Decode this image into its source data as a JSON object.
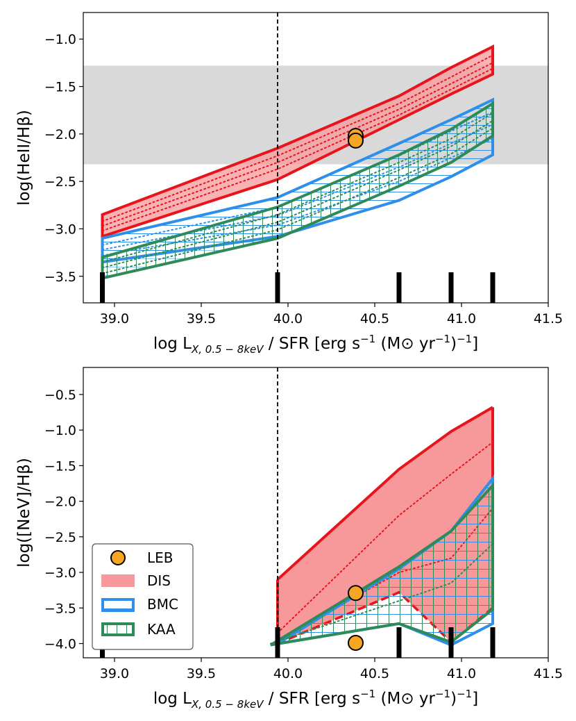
{
  "colors": {
    "DIS": "#e8141c",
    "DIS_fill": "#f7999b",
    "BMC": "#2f8fe8",
    "KAA": "#2e8a57",
    "LEB": "#f7a623",
    "shade": "#d9d9d9"
  },
  "chart_data": [
    {
      "type": "area",
      "xlabel": "log L_{X, 0.5-8keV} / SFR [erg s^-1 (M⊙ yr^-1)^-1]",
      "ylabel": "log(HeII/Hβ)",
      "xlim": [
        38.82,
        41.5
      ],
      "ylim": [
        -3.78,
        -0.72
      ],
      "xticks": [
        "39.0",
        "39.5",
        "40.0",
        "40.5",
        "41.0",
        "41.5"
      ],
      "yticks": [
        "−1.0",
        "−1.5",
        "−2.0",
        "−2.5",
        "−3.0",
        "−3.5"
      ],
      "shaded_band_y": [
        -2.32,
        -1.28
      ],
      "vertical_line_x": 39.94,
      "rug_x": [
        38.93,
        39.94,
        40.64,
        40.94,
        41.18
      ],
      "series": [
        {
          "name": "DIS",
          "x": [
            38.93,
            39.94,
            40.64,
            40.94,
            41.18
          ],
          "upper": [
            -2.85,
            -2.15,
            -1.6,
            -1.3,
            -1.08
          ],
          "lower": [
            -3.08,
            -2.48,
            -1.85,
            -1.58,
            -1.37
          ],
          "inner": [
            [
              -2.92,
              -2.23,
              -1.68,
              -1.4,
              -1.17
            ],
            [
              -2.97,
              -2.3,
              -1.74,
              -1.47,
              -1.25
            ],
            [
              -3.02,
              -2.37,
              -1.8,
              -1.53,
              -1.31
            ]
          ]
        },
        {
          "name": "BMC",
          "x": [
            38.93,
            39.94,
            40.64,
            40.94,
            41.18
          ],
          "upper": [
            -3.1,
            -2.67,
            -2.1,
            -1.85,
            -1.64
          ],
          "lower": [
            -3.35,
            -3.08,
            -2.7,
            -2.45,
            -2.22
          ],
          "inner": [
            [
              -3.17,
              -2.77,
              -2.23,
              -1.97,
              -1.77
            ],
            [
              -3.22,
              -2.86,
              -2.35,
              -2.1,
              -1.9
            ],
            [
              -3.28,
              -2.96,
              -2.5,
              -2.25,
              -2.05
            ]
          ]
        },
        {
          "name": "KAA",
          "x": [
            38.93,
            39.94,
            40.64,
            40.94,
            41.18
          ],
          "upper": [
            -3.3,
            -2.77,
            -2.22,
            -1.95,
            -1.68
          ],
          "lower": [
            -3.52,
            -3.1,
            -2.55,
            -2.3,
            -2.02
          ],
          "inner": [
            [
              -3.35,
              -2.85,
              -2.3,
              -2.05,
              -1.78
            ],
            [
              -3.41,
              -2.93,
              -2.38,
              -2.13,
              -1.86
            ],
            [
              -3.47,
              -3.01,
              -2.46,
              -2.21,
              -1.94
            ]
          ]
        }
      ],
      "points": [
        {
          "name": "LEB",
          "x": 40.39,
          "y": -2.02
        },
        {
          "name": "LEB",
          "x": 40.39,
          "y": -2.07
        }
      ]
    },
    {
      "type": "area",
      "xlabel": "log L_{X, 0.5-8keV} / SFR [erg s^-1 (M⊙ yr^-1)^-1]",
      "ylabel": "log([NeV]/Hβ)",
      "xlim": [
        38.82,
        41.5
      ],
      "ylim": [
        -4.2,
        -0.12
      ],
      "xticks": [
        "39.0",
        "39.5",
        "40.0",
        "40.5",
        "41.0",
        "41.5"
      ],
      "yticks": [
        "−0.5",
        "−1.0",
        "−1.5",
        "−2.0",
        "−2.5",
        "−3.0",
        "−3.5",
        "−4.0"
      ],
      "vertical_line_x": 39.94,
      "rug_x": [
        38.93,
        39.94,
        40.64,
        40.94,
        41.18
      ],
      "series": [
        {
          "name": "DIS",
          "x": [
            39.94,
            40.64,
            40.94,
            41.18
          ],
          "upper": [
            -3.1,
            -1.55,
            -1.02,
            -0.68
          ],
          "lower": [
            -4.0,
            -3.28,
            -3.98,
            -3.5
          ],
          "inner": [
            [
              -3.85,
              -2.2,
              -1.62,
              -1.17
            ],
            [
              -3.95,
              -3.0,
              -2.8,
              -2.1
            ]
          ]
        },
        {
          "name": "BMC",
          "x": [
            39.94,
            40.64,
            40.94,
            41.18
          ],
          "upper": [
            -4.0,
            -2.95,
            -2.42,
            -1.68
          ],
          "lower": [
            -4.0,
            -3.72,
            -4.02,
            -3.72
          ],
          "inner": []
        },
        {
          "name": "KAA",
          "x": [
            39.9,
            40.64,
            40.94,
            41.18
          ],
          "upper": [
            -4.02,
            -2.92,
            -2.42,
            -1.78
          ],
          "lower": [
            -4.02,
            -3.72,
            -3.98,
            -3.52
          ],
          "inner": [
            [
              -4.0,
              -3.4,
              -3.15,
              -2.6
            ]
          ]
        }
      ],
      "points": [
        {
          "name": "LEB",
          "x": 40.39,
          "y": -3.29
        },
        {
          "name": "LEB",
          "x": 40.39,
          "y": -3.99
        }
      ]
    }
  ],
  "legend": {
    "entries": [
      "LEB",
      "DIS",
      "BMC",
      "KAA"
    ]
  }
}
